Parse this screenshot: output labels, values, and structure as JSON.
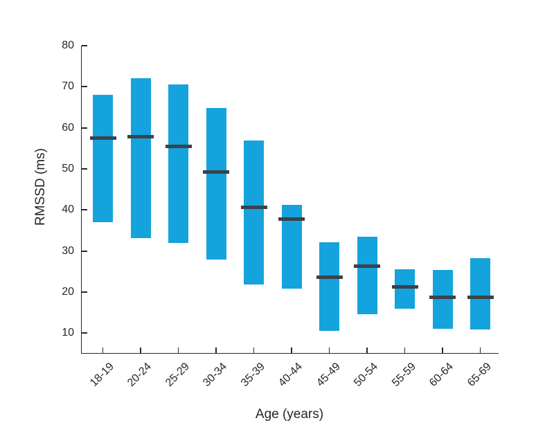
{
  "chart_data": {
    "type": "bar",
    "subtype": "floating-range-bars-with-median",
    "title": "",
    "xlabel": "Age (years)",
    "ylabel": "RMSSD (ms)",
    "categories": [
      "18-19",
      "20-24",
      "25-29",
      "30-34",
      "35-39",
      "40-44",
      "45-49",
      "50-54",
      "55-59",
      "60-64",
      "65-69"
    ],
    "series": [
      {
        "name": "range-low",
        "values": [
          37.0,
          33.2,
          32.0,
          27.9,
          21.9,
          20.8,
          10.6,
          14.6,
          16.0,
          11.1,
          10.9
        ]
      },
      {
        "name": "range-high",
        "values": [
          68.0,
          72.0,
          70.5,
          64.8,
          56.9,
          41.2,
          32.1,
          33.5,
          25.6,
          25.4,
          28.3
        ]
      },
      {
        "name": "median",
        "values": [
          57.5,
          57.8,
          55.5,
          49.2,
          40.7,
          37.7,
          23.7,
          26.4,
          21.3,
          18.7,
          18.7
        ]
      }
    ],
    "ylim": [
      5,
      80
    ],
    "yticks": [
      10,
      20,
      30,
      40,
      50,
      60,
      70,
      80
    ],
    "grid": false,
    "legend": "none",
    "colors": {
      "bar_fill": "#14A3DC",
      "median_line": "#3C4248",
      "axis": "#262626",
      "background": "#FFFFFF"
    }
  }
}
